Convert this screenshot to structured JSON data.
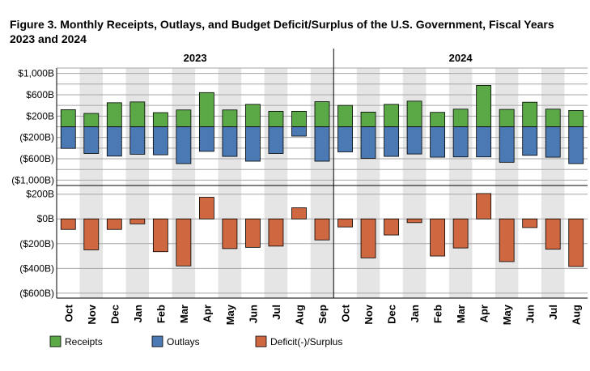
{
  "title": "Figure 3. Monthly Receipts, Outlays, and Budget Deficit/Surplus of the U.S. Government, Fiscal Years 2023 and 2024",
  "colors": {
    "receipts": "#5aa846",
    "outlays": "#4b79b4",
    "deficit": "#cf6840",
    "shade": "#e5e5e5"
  },
  "chart_data": [
    {
      "type": "bar",
      "panel": "receipts-outlays",
      "year_labels": [
        "2023",
        "2024"
      ],
      "categories": [
        "Oct",
        "Nov",
        "Dec",
        "Jan",
        "Feb",
        "Mar",
        "Apr",
        "May",
        "Jun",
        "Jul",
        "Aug",
        "Sep",
        "Oct",
        "Nov",
        "Dec",
        "Jan",
        "Feb",
        "Mar",
        "Apr",
        "May",
        "Jun",
        "Jul",
        "Aug"
      ],
      "series": [
        {
          "name": "Receipts",
          "values": [
            320,
            250,
            450,
            465,
            265,
            315,
            640,
            315,
            420,
            290,
            290,
            470,
            400,
            275,
            420,
            480,
            270,
            330,
            775,
            325,
            460,
            330,
            305
          ]
        },
        {
          "name": "Outlays",
          "values": [
            -405,
            -500,
            -550,
            -515,
            -525,
            -690,
            -460,
            -555,
            -645,
            -500,
            -175,
            -645,
            -470,
            -590,
            -555,
            -510,
            -570,
            -565,
            -565,
            -665,
            -535,
            -570,
            -690
          ]
        }
      ],
      "ylim": [
        -1100,
        1100
      ],
      "yticks": [
        {
          "value": 1000,
          "label": "$1,000B"
        },
        {
          "value": 600,
          "label": "$600B"
        },
        {
          "value": 200,
          "label": "$200B"
        },
        {
          "value": -200,
          "label": "($200B)"
        },
        {
          "value": -600,
          "label": "($600B)"
        },
        {
          "value": -1000,
          "label": "($1,000B)"
        }
      ]
    },
    {
      "type": "bar",
      "panel": "deficit-surplus",
      "categories": [
        "Oct",
        "Nov",
        "Dec",
        "Jan",
        "Feb",
        "Mar",
        "Apr",
        "May",
        "Jun",
        "Jul",
        "Aug",
        "Sep",
        "Oct",
        "Nov",
        "Dec",
        "Jan",
        "Feb",
        "Mar",
        "Apr",
        "May",
        "Jun",
        "Jul",
        "Aug"
      ],
      "series": [
        {
          "name": "Deficit(-)/Surplus",
          "values": [
            -85,
            -250,
            -85,
            -40,
            -265,
            -380,
            175,
            -240,
            -230,
            -220,
            90,
            -170,
            -65,
            -315,
            -130,
            -30,
            -300,
            -235,
            205,
            -345,
            -70,
            -245,
            -385
          ]
        }
      ],
      "ylim": [
        -640,
        270
      ],
      "yticks": [
        {
          "value": 200,
          "label": "$200B"
        },
        {
          "value": 0,
          "label": "$0B"
        },
        {
          "value": -200,
          "label": "($200B)"
        },
        {
          "value": -400,
          "label": "($400B)"
        },
        {
          "value": -600,
          "label": "($600B)"
        }
      ]
    }
  ],
  "legend": [
    "Receipts",
    "Outlays",
    "Deficit(-)/Surplus"
  ]
}
